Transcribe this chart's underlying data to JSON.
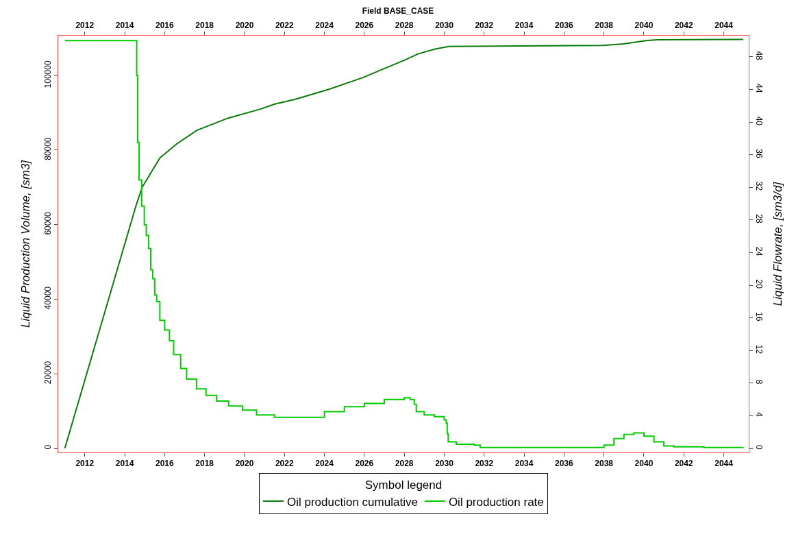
{
  "chart_data": {
    "type": "line",
    "title": "Field BASE_CASE",
    "ylabel": "Liquid Production Volume, [sm3]",
    "y2label": "Liquid Flowrate, [sm3/d]",
    "legend_title": "Symbol legend",
    "legend": "bottom",
    "marker": "none",
    "line_style": "solid",
    "xlim": [
      2010.67,
      2045.25
    ],
    "xticks": [
      2012,
      2014,
      2016,
      2018,
      2020,
      2022,
      2024,
      2026,
      2028,
      2030,
      2032,
      2034,
      2036,
      2038,
      2040,
      2042,
      2044
    ],
    "x2lim": [
      2010.67,
      2045.25
    ],
    "x2ticks": [
      2012,
      2014,
      2016,
      2018,
      2020,
      2022,
      2024,
      2026,
      2028,
      2030,
      2032,
      2034,
      2036,
      2038,
      2040,
      2042,
      2044
    ],
    "ylim": [
      -1100,
      110700
    ],
    "yticks": [
      0,
      20000,
      40000,
      60000,
      80000,
      100000
    ],
    "y2lim": [
      -0.5,
      50.6
    ],
    "y2ticks": [
      0,
      4,
      8,
      12,
      16,
      20,
      24,
      28,
      32,
      36,
      40,
      44,
      48
    ],
    "series": [
      {
        "name": "Oil production cumulative",
        "color": "#0a7a0a",
        "x": [
          2011.0,
          2014.56,
          2014.87,
          2015.76,
          2016.59,
          2017.61,
          2019.19,
          2020.8,
          2021.49,
          2022.52,
          2024.23,
          2025.95,
          2026.97,
          2028.0,
          2028.69,
          2029.55,
          2030.23,
          2037.95,
          2038.98,
          2040.18,
          2040.69,
          2044.98
        ],
        "values": [
          0,
          65000,
          70000,
          77900,
          81600,
          85300,
          88600,
          91000,
          92300,
          93600,
          96300,
          99500,
          101800,
          104100,
          105800,
          107100,
          107800,
          108100,
          108500,
          109400,
          109600,
          109700
        ]
      },
      {
        "name": "Oil production rate",
        "color": "#00cc00",
        "type": "step",
        "axis": "y2",
        "x": [
          2011.0,
          2014.6,
          2014.65,
          2014.72,
          2014.85,
          2014.98,
          2015.08,
          2015.2,
          2015.3,
          2015.4,
          2015.5,
          2015.6,
          2015.76,
          2016.0,
          2016.24,
          2016.45,
          2016.8,
          2017.1,
          2017.6,
          2018.07,
          2018.6,
          2019.2,
          2019.9,
          2020.6,
          2021.5,
          2024.0,
          2025.0,
          2026.0,
          2027.0,
          2028.0,
          2028.3,
          2028.5,
          2028.6,
          2029.0,
          2029.5,
          2030.0,
          2030.1,
          2030.15,
          2030.2,
          2030.6,
          2031.5,
          2031.8,
          2037.5,
          2038.0,
          2038.5,
          2039.0,
          2039.5,
          2040.0,
          2040.5,
          2041.0,
          2041.5,
          2043.0,
          2045.0
        ],
        "values": [
          50,
          45.7,
          37.5,
          32.9,
          29.7,
          27.4,
          26.1,
          24.5,
          21.9,
          20.8,
          18.8,
          18.0,
          15.7,
          14.5,
          13.2,
          11.5,
          9.8,
          8.5,
          7.3,
          6.5,
          5.8,
          5.2,
          4.7,
          4.1,
          3.8,
          4.5,
          5.1,
          5.5,
          6.0,
          6.2,
          6.0,
          5.4,
          4.5,
          4.1,
          3.9,
          3.5,
          3.1,
          1.8,
          0.8,
          0.5,
          0.4,
          0.1,
          0.1,
          0.4,
          1.2,
          1.7,
          1.9,
          1.5,
          0.8,
          0.3,
          0.2,
          0.1,
          0.1
        ]
      }
    ]
  }
}
